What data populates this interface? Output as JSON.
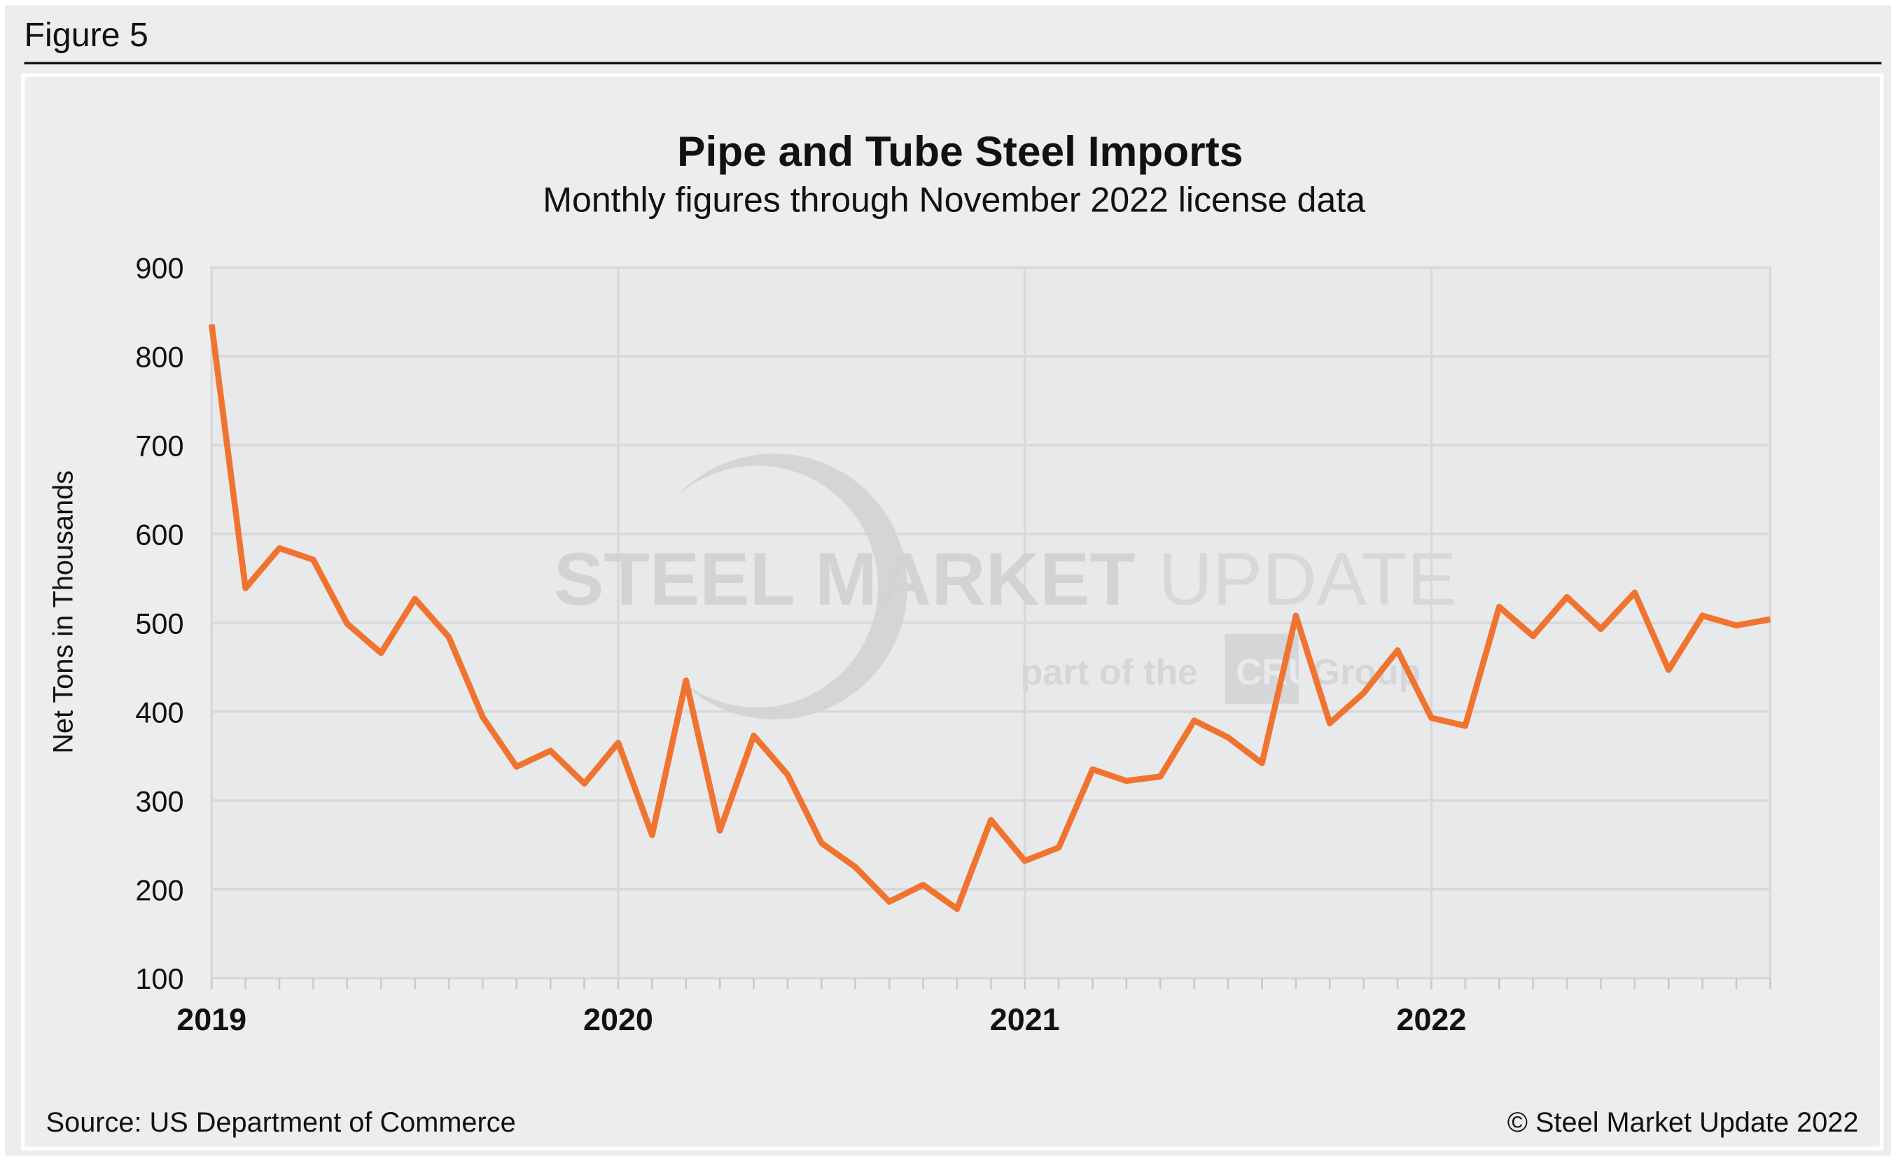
{
  "figure_label": "Figure 5",
  "source": "Source: US Department of Commerce",
  "copyright": "© Steel Market Update 2022",
  "watermark": {
    "main_bold": "STEEL MARKET",
    "main_light": "UPDATE",
    "sub": "part of the",
    "brand": "CRU",
    "sub2": "Group"
  },
  "colors": {
    "line": "#f07430",
    "plot_bg": "#e8e9eb",
    "page_bg": "#ededed",
    "grid": "#d7d8da"
  },
  "chart_data": {
    "type": "line",
    "title": "Pipe and Tube Steel Imports",
    "subtitle": "Monthly figures through November 2022 license data",
    "xlabel": "",
    "ylabel": "Net Tons in Thousands",
    "ylim": [
      100,
      900
    ],
    "yticks": [
      "100",
      "200",
      "300",
      "400",
      "500",
      "600",
      "700",
      "800",
      "900"
    ],
    "xticks": [
      "2019",
      "2020",
      "2021",
      "2022"
    ],
    "grid": true,
    "x_start": "2019-01",
    "x_end": "2022-11",
    "values": [
      836,
      539,
      584,
      571,
      499,
      466,
      527,
      484,
      394,
      338,
      356,
      319,
      365,
      261,
      435,
      266,
      373,
      329,
      252,
      225,
      186,
      205,
      178,
      278,
      232,
      247,
      335,
      322,
      327,
      390,
      371,
      342,
      508,
      387,
      421,
      469,
      393,
      384,
      518,
      485,
      529,
      493,
      534,
      447,
      508,
      497,
      504
    ]
  }
}
